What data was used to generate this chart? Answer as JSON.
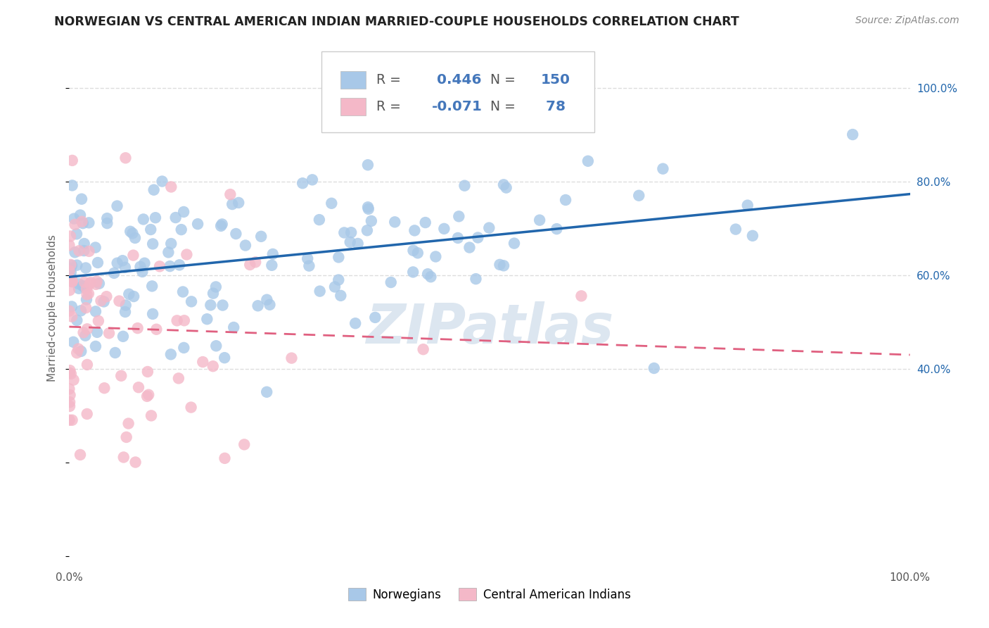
{
  "title": "NORWEGIAN VS CENTRAL AMERICAN INDIAN MARRIED-COUPLE HOUSEHOLDS CORRELATION CHART",
  "source": "Source: ZipAtlas.com",
  "ylabel": "Married-couple Households",
  "legend_label1": "Norwegians",
  "legend_label2": "Central American Indians",
  "r1": 0.446,
  "n1": 150,
  "r2": -0.071,
  "n2": 78,
  "blue_color": "#a8c8e8",
  "blue_line_color": "#2166ac",
  "pink_color": "#f4b8c8",
  "pink_line_color": "#e06080",
  "watermark": "ZIPatlas",
  "watermark_color": "#dce6f0",
  "bg_color": "#ffffff",
  "grid_color": "#dddddd",
  "title_fontsize": 12.5,
  "source_fontsize": 10,
  "seed_blue": 12,
  "seed_pink": 99,
  "legend_text_color": "#4477bb",
  "legend_label_color": "#555555"
}
